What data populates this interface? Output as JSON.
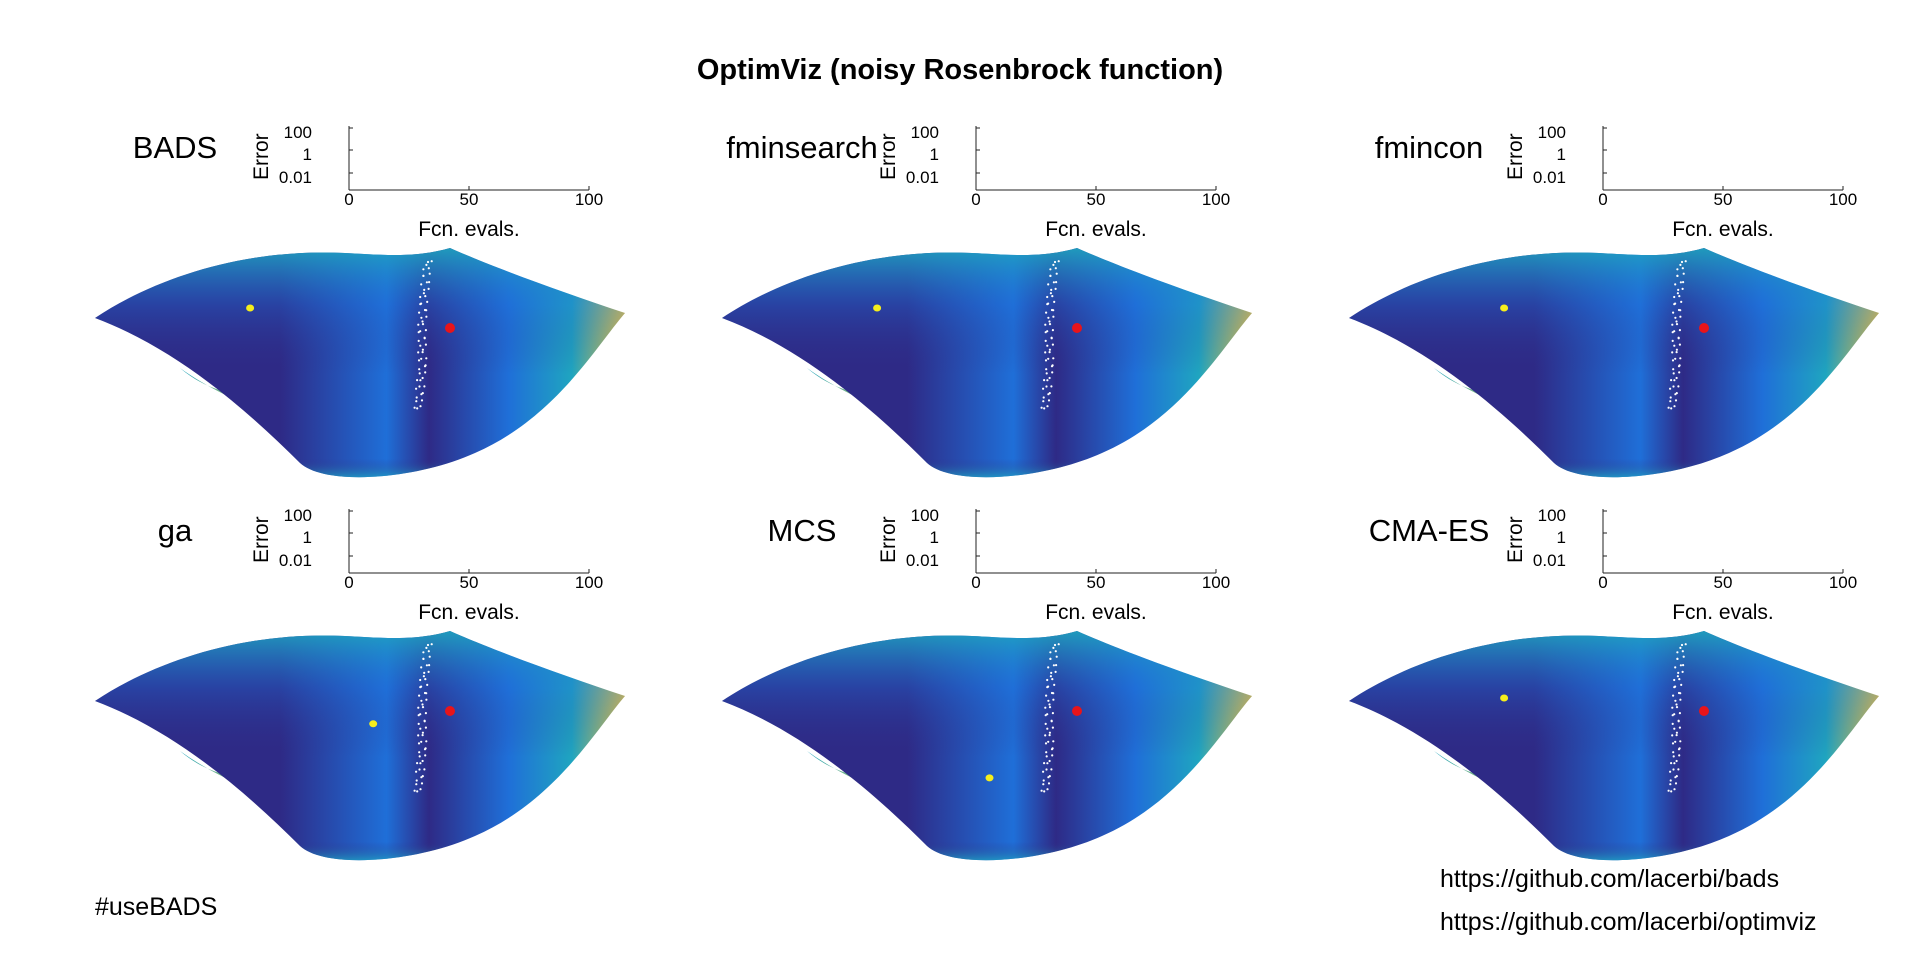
{
  "figure": {
    "title": "OptimViz (noisy Rosenbrock function)",
    "hashtag": "#useBADS",
    "links": [
      "https://github.com/lacerbi/bads",
      "https://github.com/lacerbi/optimviz"
    ]
  },
  "colors": {
    "surface_low": "#2e2a86",
    "surface_mid": "#1f6fd8",
    "surface_teal": "#1fa5c0",
    "surface_high": "#f5c93a",
    "optimum_marker": "#e8141a",
    "current_point": "#f5ee1c",
    "trail": "#ffffff"
  },
  "chart_data": [
    {
      "type": "line",
      "title": "BADS",
      "ylabel": "Error",
      "xlabel": "Fcn. evals.",
      "yscale": "log",
      "yticks": [
        "100",
        "1",
        "0.01"
      ],
      "xticks": [
        "0",
        "50",
        "100"
      ],
      "xlim": [
        0,
        100
      ],
      "series": [],
      "surface_point": [
        0.29,
        0.17
      ]
    },
    {
      "type": "line",
      "title": "fminsearch",
      "ylabel": "Error",
      "xlabel": "Fcn. evals.",
      "yscale": "log",
      "yticks": [
        "100",
        "1",
        "0.01"
      ],
      "xticks": [
        "0",
        "50",
        "100"
      ],
      "xlim": [
        0,
        100
      ],
      "series": [],
      "surface_point": [
        0.29,
        0.17
      ]
    },
    {
      "type": "line",
      "title": "fmincon",
      "ylabel": "Error",
      "xlabel": "Fcn. evals.",
      "yscale": "log",
      "yticks": [
        "100",
        "1",
        "0.01"
      ],
      "xticks": [
        "0",
        "50",
        "100"
      ],
      "xlim": [
        0,
        100
      ],
      "series": [],
      "surface_point": [
        0.29,
        0.17
      ]
    },
    {
      "type": "line",
      "title": "ga",
      "ylabel": "Error",
      "xlabel": "Fcn. evals.",
      "yscale": "log",
      "yticks": [
        "100",
        "1",
        "0.01"
      ],
      "xticks": [
        "0",
        "50",
        "100"
      ],
      "xlim": [
        0,
        100
      ],
      "series": [],
      "surface_point": [
        0.52,
        0.31
      ]
    },
    {
      "type": "line",
      "title": "MCS",
      "ylabel": "Error",
      "xlabel": "Fcn. evals.",
      "yscale": "log",
      "yticks": [
        "100",
        "1",
        "0.01"
      ],
      "xticks": [
        "0",
        "50",
        "100"
      ],
      "xlim": [
        0,
        100
      ],
      "series": [],
      "surface_point": [
        0.5,
        0.54
      ]
    },
    {
      "type": "line",
      "title": "CMA-ES",
      "ylabel": "Error",
      "xlabel": "Fcn. evals.",
      "yscale": "log",
      "yticks": [
        "100",
        "1",
        "0.01"
      ],
      "xticks": [
        "0",
        "50",
        "100"
      ],
      "xlim": [
        0,
        100
      ],
      "series": [],
      "surface_point": [
        0.29,
        0.2
      ]
    }
  ]
}
